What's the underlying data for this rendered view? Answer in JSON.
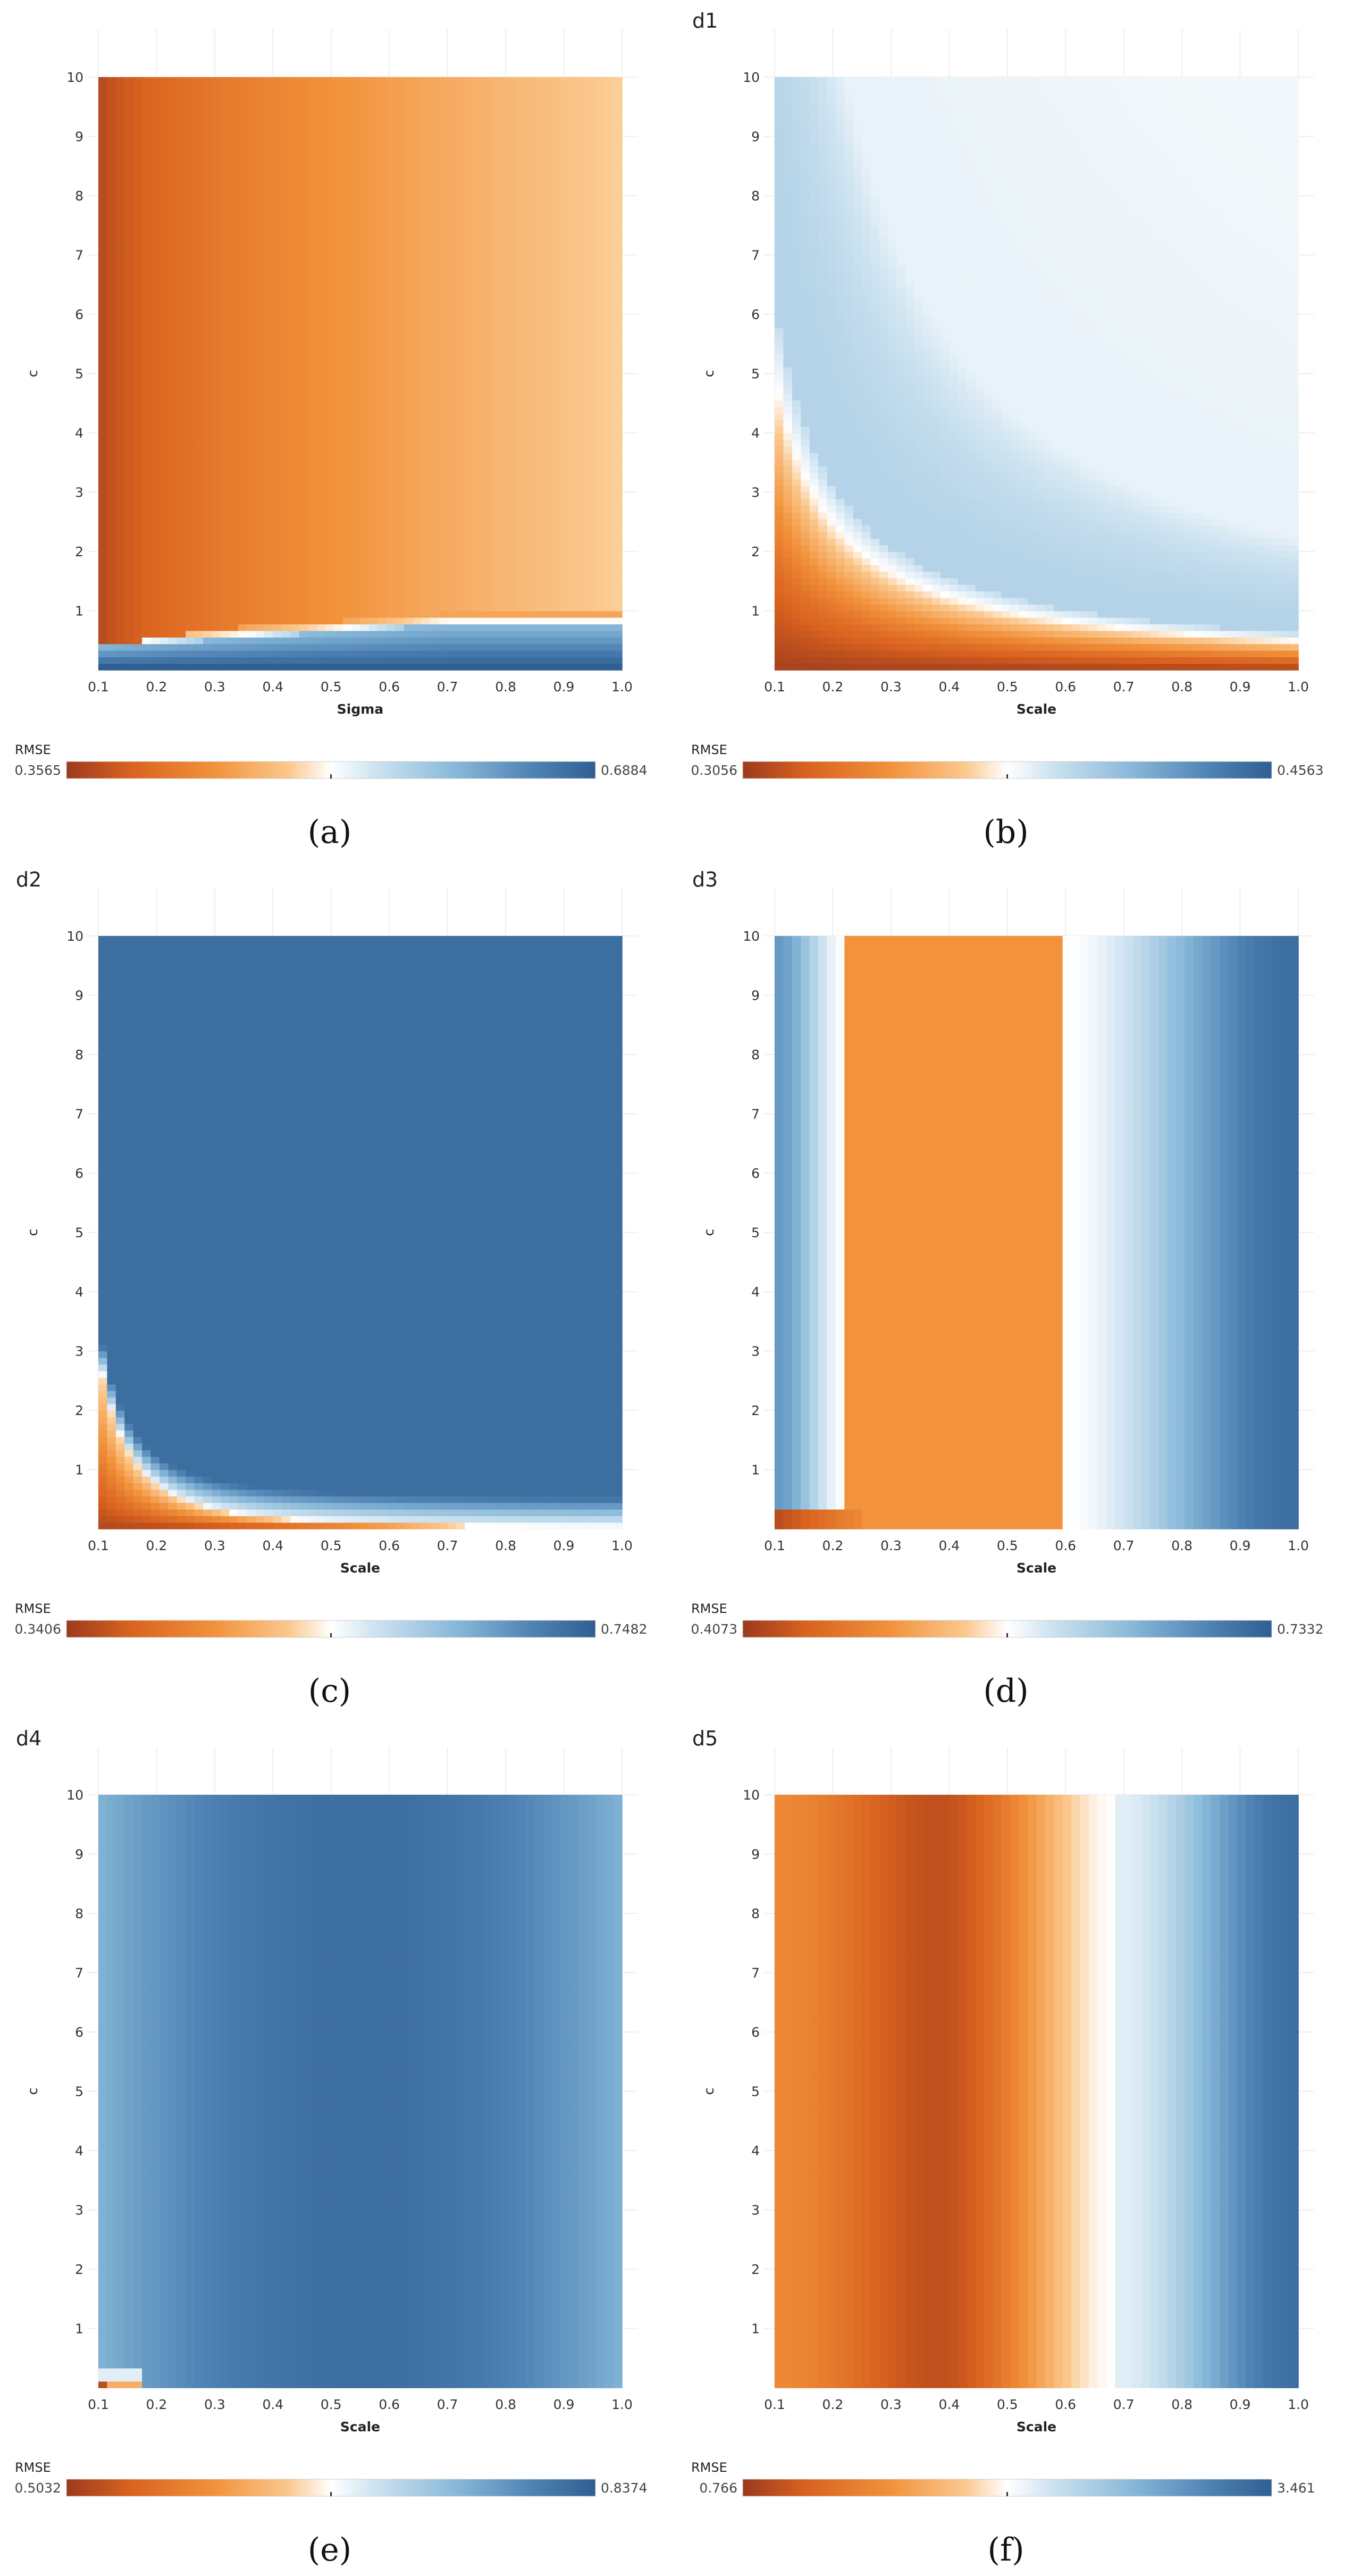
{
  "figure_name": "RMSE heatmaps of c versus kernel parameter",
  "colors": {
    "low": "#9c3a1d",
    "mid": "#ffffff",
    "high": "#2f5f92",
    "grid": "#eeeeee"
  },
  "chart_data": [
    {
      "id": "a",
      "type": "heatmap",
      "title": "",
      "caption": "(a)",
      "xlabel": "Sigma",
      "ylabel": "c",
      "xticks": [
        "0.1",
        "0.2",
        "0.3",
        "0.4",
        "0.5",
        "0.6",
        "0.7",
        "0.8",
        "0.9",
        "1.0"
      ],
      "yticks": [
        "1",
        "2",
        "3",
        "4",
        "5",
        "6",
        "7",
        "8",
        "9",
        "10"
      ],
      "xlim": [
        0.1,
        1.0
      ],
      "ylim": [
        0.0,
        10.0
      ],
      "colorbar": {
        "label": "RMSE",
        "min": 0.3565,
        "max": 0.6884,
        "min_label": "0.3565",
        "max_label": "0.6884"
      },
      "pattern": "a"
    },
    {
      "id": "b",
      "type": "heatmap",
      "title": "d1",
      "caption": "(b)",
      "xlabel": "Scale",
      "ylabel": "c",
      "xticks": [
        "0.1",
        "0.2",
        "0.3",
        "0.4",
        "0.5",
        "0.6",
        "0.7",
        "0.8",
        "0.9",
        "1.0"
      ],
      "yticks": [
        "1",
        "2",
        "3",
        "4",
        "5",
        "6",
        "7",
        "8",
        "9",
        "10"
      ],
      "xlim": [
        0.1,
        1.0
      ],
      "ylim": [
        0.0,
        10.0
      ],
      "colorbar": {
        "label": "RMSE",
        "min": 0.3056,
        "max": 0.4563,
        "min_label": "0.3056",
        "max_label": "0.4563"
      },
      "pattern": "b"
    },
    {
      "id": "c",
      "type": "heatmap",
      "title": "d2",
      "caption": "(c)",
      "xlabel": "Scale",
      "ylabel": "c",
      "xticks": [
        "0.1",
        "0.2",
        "0.3",
        "0.4",
        "0.5",
        "0.6",
        "0.7",
        "0.8",
        "0.9",
        "1.0"
      ],
      "yticks": [
        "1",
        "2",
        "3",
        "4",
        "5",
        "6",
        "7",
        "8",
        "9",
        "10"
      ],
      "xlim": [
        0.1,
        1.0
      ],
      "ylim": [
        0.0,
        10.0
      ],
      "colorbar": {
        "label": "RMSE",
        "min": 0.3406,
        "max": 0.7482,
        "min_label": "0.3406",
        "max_label": "0.7482"
      },
      "pattern": "c"
    },
    {
      "id": "d",
      "type": "heatmap",
      "title": "d3",
      "caption": "(d)",
      "xlabel": "Scale",
      "ylabel": "c",
      "xticks": [
        "0.1",
        "0.2",
        "0.3",
        "0.4",
        "0.5",
        "0.6",
        "0.7",
        "0.8",
        "0.9",
        "1.0"
      ],
      "yticks": [
        "1",
        "2",
        "3",
        "4",
        "5",
        "6",
        "7",
        "8",
        "9",
        "10"
      ],
      "xlim": [
        0.1,
        1.0
      ],
      "ylim": [
        0.0,
        10.0
      ],
      "colorbar": {
        "label": "RMSE",
        "min": 0.4073,
        "max": 0.7332,
        "min_label": "0.4073",
        "max_label": "0.7332"
      },
      "pattern": "d"
    },
    {
      "id": "e",
      "type": "heatmap",
      "title": "d4",
      "caption": "(e)",
      "xlabel": "Scale",
      "ylabel": "c",
      "xticks": [
        "0.1",
        "0.2",
        "0.3",
        "0.4",
        "0.5",
        "0.6",
        "0.7",
        "0.8",
        "0.9",
        "1.0"
      ],
      "yticks": [
        "1",
        "2",
        "3",
        "4",
        "5",
        "6",
        "7",
        "8",
        "9",
        "10"
      ],
      "xlim": [
        0.1,
        1.0
      ],
      "ylim": [
        0.0,
        10.0
      ],
      "colorbar": {
        "label": "RMSE",
        "min": 0.5032,
        "max": 0.8374,
        "min_label": "0.5032",
        "max_label": "0.8374"
      },
      "pattern": "e"
    },
    {
      "id": "f",
      "type": "heatmap",
      "title": "d5",
      "caption": "(f)",
      "xlabel": "Scale",
      "ylabel": "c",
      "xticks": [
        "0.1",
        "0.2",
        "0.3",
        "0.4",
        "0.5",
        "0.6",
        "0.7",
        "0.8",
        "0.9",
        "1.0"
      ],
      "yticks": [
        "1",
        "2",
        "3",
        "4",
        "5",
        "6",
        "7",
        "8",
        "9",
        "10"
      ],
      "xlim": [
        0.1,
        1.0
      ],
      "ylim": [
        0.0,
        10.0
      ],
      "colorbar": {
        "label": "RMSE",
        "min": 0.766,
        "max": 3.461,
        "min_label": "0.766",
        "max_label": "3.461"
      },
      "pattern": "f"
    }
  ]
}
